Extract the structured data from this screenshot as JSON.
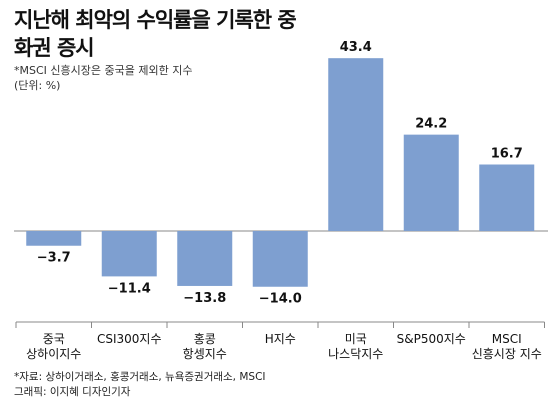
{
  "header": {
    "title": "지난해 최악의 수익률을 기록한 중화권 증시",
    "subtitle": "*MSCI 신흥시장은 중국을 제외한 지수",
    "unit": "(단위: %)"
  },
  "footer": {
    "source": "*자료: 상하이거래소, 홍콩거래소, 뉴욕증권거래소, MSCI",
    "credit": "그래픽: 이지혜 디자인기자"
  },
  "colors": {
    "bar": "#7e9fd0",
    "axis": "#888888"
  },
  "chart_data": {
    "type": "bar",
    "categories": [
      [
        "중국",
        "상하이지수"
      ],
      [
        "CSI300지수"
      ],
      [
        "홍콩",
        "항셍지수"
      ],
      [
        "H지수"
      ],
      [
        "미국",
        "나스닥지수"
      ],
      [
        "S&P500지수"
      ],
      [
        "MSCI",
        "신흥시장 지수"
      ]
    ],
    "values": [
      -3.7,
      -11.4,
      -13.8,
      -14.0,
      43.4,
      24.2,
      16.7
    ],
    "value_labels": [
      "−3.7",
      "−11.4",
      "−13.8",
      "−14.0",
      "43.4",
      "24.2",
      "16.7"
    ],
    "ylim": [
      -20,
      45
    ],
    "grid": false
  }
}
